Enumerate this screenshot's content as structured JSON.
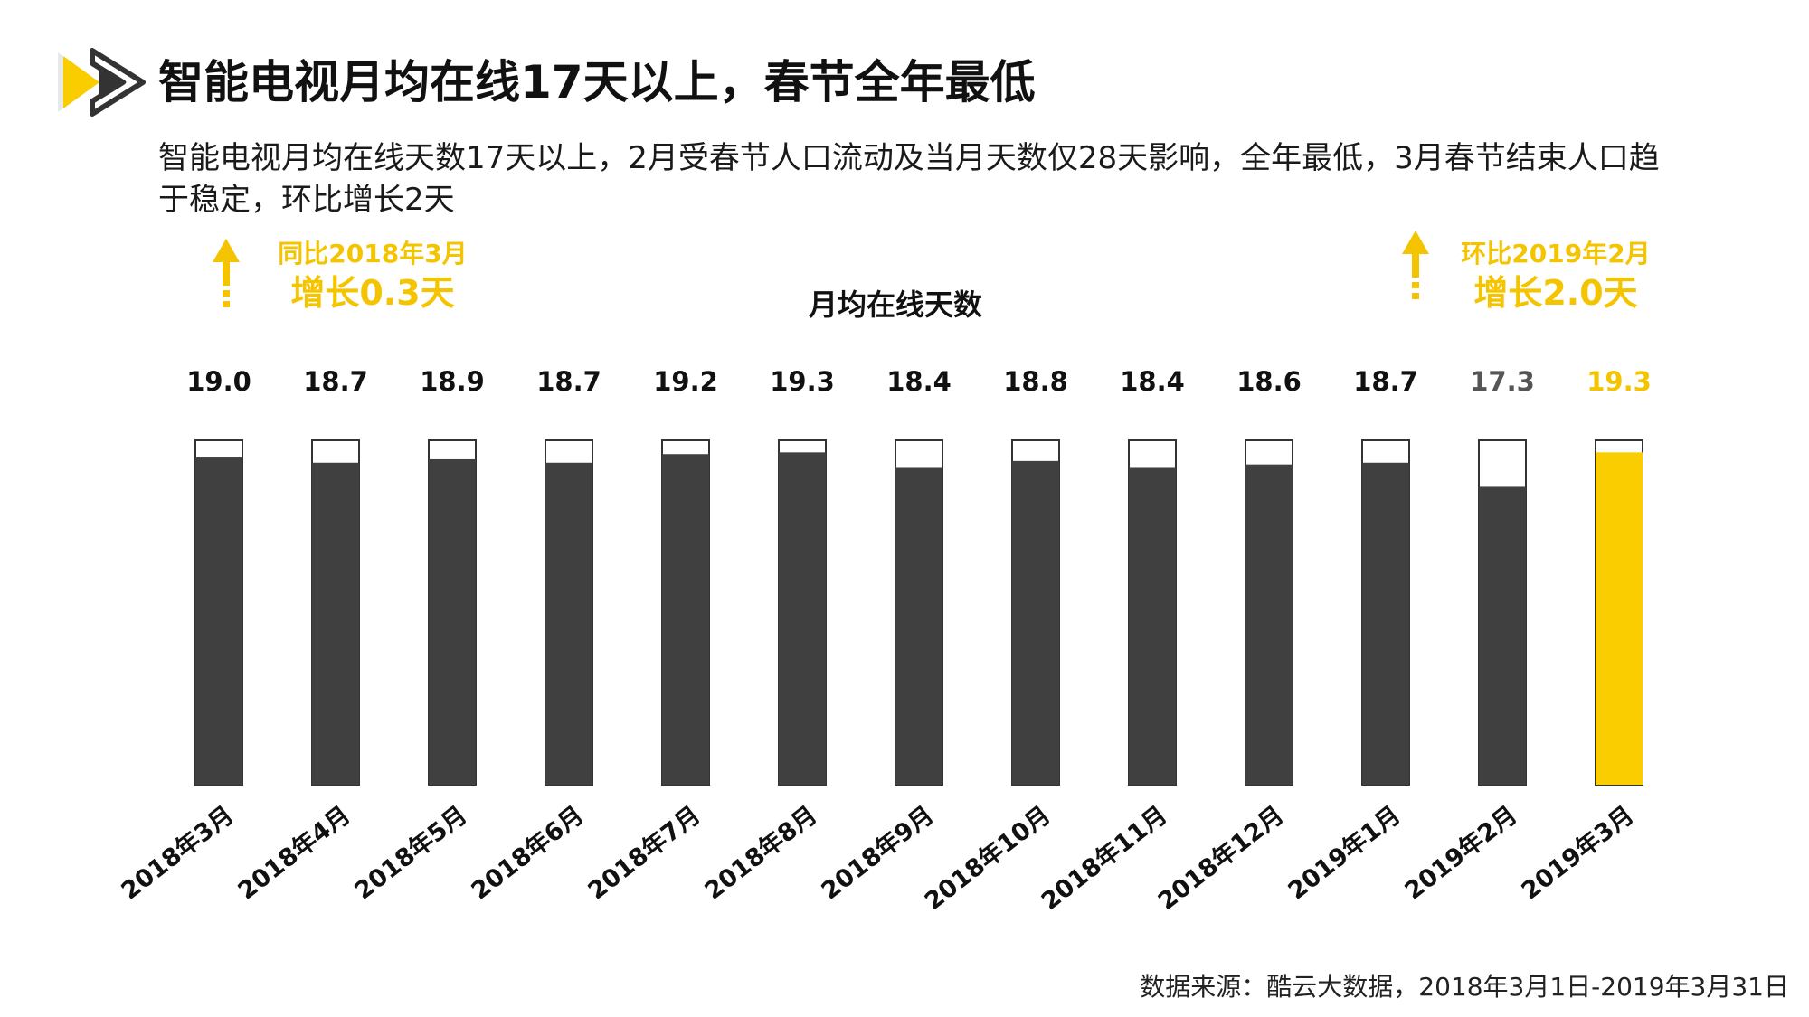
{
  "header": {
    "title": "智能电视月均在线17天以上，春节全年最低",
    "description": "智能电视月均在线天数17天以上，2月受春节人口流动及当月天数仅28天影响，全年最低，3月春节结束人口趋于稳定，环比增长2天"
  },
  "callouts": {
    "left": {
      "line1": "同比2018年3月",
      "line2": "增长0.3天"
    },
    "right": {
      "line1": "环比2019年2月",
      "line2": "增长2.0天"
    }
  },
  "chart_data": {
    "type": "bar",
    "title": "月均在线天数",
    "categories": [
      "2018年3月",
      "2018年4月",
      "2018年5月",
      "2018年6月",
      "2018年7月",
      "2018年8月",
      "2018年9月",
      "2018年10月",
      "2018年11月",
      "2018年12月",
      "2019年1月",
      "2019年2月",
      "2019年3月"
    ],
    "values": [
      19.0,
      18.7,
      18.9,
      18.7,
      19.2,
      19.3,
      18.4,
      18.8,
      18.4,
      18.6,
      18.7,
      17.3,
      19.3
    ],
    "value_labels": [
      "19.0",
      "18.7",
      "18.9",
      "18.7",
      "19.2",
      "19.3",
      "18.4",
      "18.8",
      "18.4",
      "18.6",
      "18.7",
      "17.3",
      "19.3"
    ],
    "ylim": [
      0,
      20
    ],
    "highlight_index": 12,
    "colors": {
      "bar": "#404040",
      "highlight": "#f9cd00",
      "frame": "#333333",
      "label": "#111111",
      "muted_label": "#555555",
      "highlight_label": "#f5c400"
    }
  },
  "footer": {
    "source": "数据来源：酷云大数据，2018年3月1日-2019年3月31日"
  }
}
